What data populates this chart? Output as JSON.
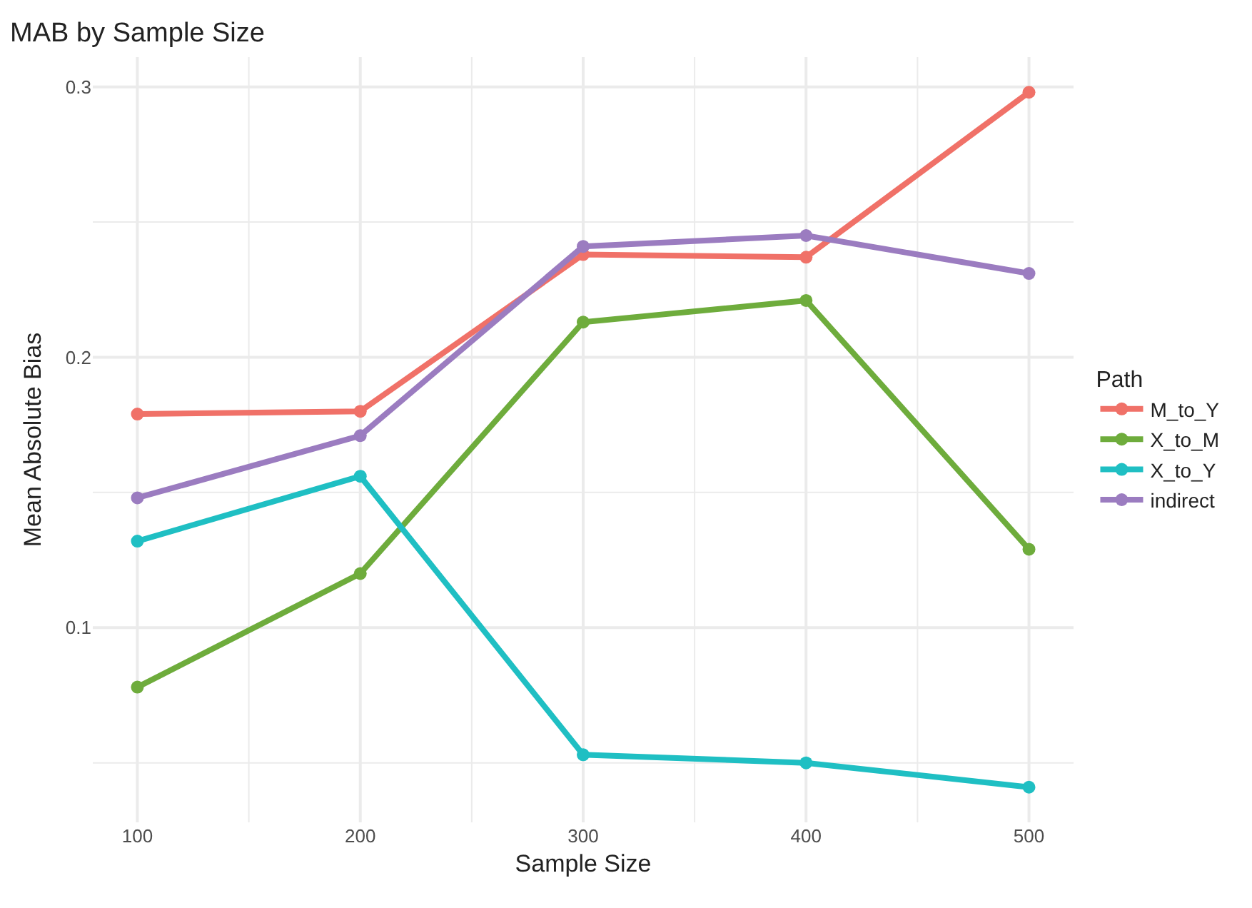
{
  "chart_data": {
    "type": "line",
    "title": "MAB by Sample Size",
    "xlabel": "Sample Size",
    "ylabel": "Mean Absolute Bias",
    "legend_title": "Path",
    "x": [
      100,
      200,
      300,
      400,
      500
    ],
    "series": [
      {
        "name": "M_to_Y",
        "color": "#f07168",
        "values": [
          0.179,
          0.18,
          0.238,
          0.237,
          0.298
        ]
      },
      {
        "name": "X_to_M",
        "color": "#6eac3c",
        "values": [
          0.078,
          0.12,
          0.213,
          0.221,
          0.129
        ]
      },
      {
        "name": "X_to_Y",
        "color": "#1fbfc3",
        "values": [
          0.132,
          0.156,
          0.053,
          0.05,
          0.041
        ]
      },
      {
        "name": "indirect",
        "color": "#9b7cc0",
        "values": [
          0.148,
          0.171,
          0.241,
          0.245,
          0.231
        ]
      }
    ],
    "xlim": [
      80,
      520
    ],
    "xticks": [
      100,
      {
        "value": 150,
        "label": null
      },
      200,
      {
        "value": 250,
        "label": null
      },
      300,
      {
        "value": 350,
        "label": null
      },
      400,
      {
        "value": 450,
        "label": null
      },
      500
    ],
    "ylim": [
      0.028,
      0.311
    ],
    "yticks": [
      {
        "value": 0.05,
        "label": null
      },
      0.1,
      {
        "value": 0.15,
        "label": null
      },
      0.2,
      {
        "value": 0.25,
        "label": null
      },
      0.3
    ],
    "grid": true,
    "legend": "right",
    "marker": "circle",
    "line_style": "solid"
  }
}
